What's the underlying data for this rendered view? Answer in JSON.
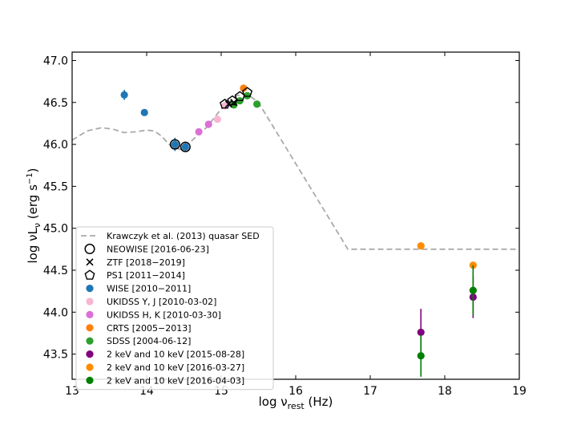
{
  "chart_data": {
    "type": "scatter",
    "xlabel": "log ν",
    "xlabel_sub": "rest",
    "xlabel_unit": " (Hz)",
    "ylabel": "log νL",
    "ylabel_sub": "ν",
    "ylabel_unit_open": " (erg s",
    "ylabel_unit_sup": "−1",
    "ylabel_unit_close": ")",
    "xlim": [
      13,
      19
    ],
    "ylim": [
      43.2,
      47.1
    ],
    "xticks": [
      13,
      14,
      15,
      16,
      17,
      18,
      19
    ],
    "xtick_labels": [
      "13",
      "14",
      "15",
      "16",
      "17",
      "18",
      "19"
    ],
    "yticks": [
      43.5,
      44.0,
      44.5,
      45.0,
      45.5,
      46.0,
      46.5,
      47.0
    ],
    "ytick_labels": [
      "43.5",
      "44.0",
      "44.5",
      "45.0",
      "45.5",
      "46.0",
      "46.5",
      "47.0"
    ],
    "grid": false,
    "legend_position": "lower-left",
    "sed_curve": {
      "name": "Krawczyk et al. (2013) quasar SED",
      "color": "#aaaaaa",
      "x": [
        13.0,
        13.2,
        13.4,
        13.55,
        13.7,
        13.85,
        14.0,
        14.1,
        14.2,
        14.3,
        14.45,
        14.6,
        14.8,
        15.0,
        15.2,
        15.35,
        15.5,
        16.7,
        17.5,
        18.5,
        19.0
      ],
      "y": [
        46.05,
        46.16,
        46.2,
        46.18,
        46.14,
        46.15,
        46.17,
        46.16,
        46.1,
        46.0,
        45.94,
        46.04,
        46.2,
        46.42,
        46.58,
        46.6,
        46.5,
        44.75,
        44.75,
        44.75,
        44.75
      ]
    },
    "series": [
      {
        "name": "NEOWISE [2016-06-23]",
        "marker": "circle-open",
        "color": "#000000",
        "points": [
          {
            "x": 14.38,
            "y": 46.0
          },
          {
            "x": 14.52,
            "y": 45.97
          }
        ]
      },
      {
        "name": "ZTF [2018−2019]",
        "marker": "x",
        "color": "#000000",
        "points": [
          {
            "x": 15.1,
            "y": 46.48
          },
          {
            "x": 15.17,
            "y": 46.5
          }
        ]
      },
      {
        "name": "PS1 [2011−2014]",
        "marker": "pentagon-open",
        "color": "#000000",
        "points": [
          {
            "x": 15.05,
            "y": 46.48
          },
          {
            "x": 15.15,
            "y": 46.52
          },
          {
            "x": 15.25,
            "y": 46.57
          },
          {
            "x": 15.35,
            "y": 46.62
          }
        ]
      },
      {
        "name": "WISE [2010−2011]",
        "marker": "circle",
        "color": "#1f77b4",
        "points": [
          {
            "x": 13.7,
            "y": 46.59,
            "err": 0.06
          },
          {
            "x": 13.97,
            "y": 46.38
          },
          {
            "x": 14.38,
            "y": 46.0,
            "err": 0.08
          },
          {
            "x": 14.52,
            "y": 45.97,
            "err": 0.05
          }
        ]
      },
      {
        "name": "UKIDSS Y, J [2010-03-02]",
        "marker": "circle",
        "color": "#f7b6d2",
        "points": [
          {
            "x": 14.95,
            "y": 46.3
          },
          {
            "x": 15.05,
            "y": 46.46
          }
        ]
      },
      {
        "name": "UKIDSS H, K [2010-03-30]",
        "marker": "circle",
        "color": "#da70d6",
        "points": [
          {
            "x": 14.7,
            "y": 46.15
          },
          {
            "x": 14.83,
            "y": 46.24
          }
        ]
      },
      {
        "name": "CRTS [2005−2013]",
        "marker": "circle",
        "color": "#ff7f0e",
        "points": [
          {
            "x": 15.3,
            "y": 46.67
          }
        ]
      },
      {
        "name": "SDSS [2004-06-12]",
        "marker": "circle",
        "color": "#2ca02c",
        "points": [
          {
            "x": 15.17,
            "y": 46.47
          },
          {
            "x": 15.25,
            "y": 46.52
          },
          {
            "x": 15.35,
            "y": 46.58
          },
          {
            "x": 15.48,
            "y": 46.48
          }
        ]
      },
      {
        "name": "2 keV and 10 keV [2015-08-28]",
        "marker": "circle",
        "color": "#800080",
        "points": [
          {
            "x": 17.68,
            "y": 43.76,
            "err": 0.28
          },
          {
            "x": 18.38,
            "y": 44.18,
            "err": 0.25
          }
        ]
      },
      {
        "name": "2 keV and 10 keV [2016-03-27]",
        "marker": "circle",
        "color": "#ff8c00",
        "points": [
          {
            "x": 17.68,
            "y": 44.79
          },
          {
            "x": 18.38,
            "y": 44.56
          }
        ]
      },
      {
        "name": "2 keV and 10 keV [2016-04-03]",
        "marker": "circle",
        "color": "#008000",
        "points": [
          {
            "x": 17.68,
            "y": 43.48,
            "err": 0.25
          },
          {
            "x": 18.38,
            "y": 44.26,
            "err": 0.3
          }
        ]
      }
    ]
  }
}
